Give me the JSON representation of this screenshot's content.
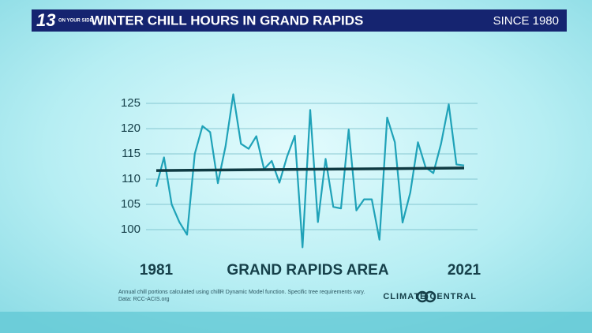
{
  "branding": {
    "logo_number": "13",
    "logo_text": "ON YOUR SIDE",
    "source_logo": "CLIMATE CENTRAL"
  },
  "header": {
    "title": "WINTER CHILL HOURS IN GRAND RAPIDS",
    "subtitle": "SINCE 1980"
  },
  "chart_data": {
    "type": "line",
    "xlabel": "GRAND RAPIDS AREA",
    "x": [
      1981,
      1982,
      1983,
      1984,
      1985,
      1986,
      1987,
      1988,
      1989,
      1990,
      1991,
      1992,
      1993,
      1994,
      1995,
      1996,
      1997,
      1998,
      1999,
      2000,
      2001,
      2002,
      2003,
      2004,
      2005,
      2006,
      2007,
      2008,
      2009,
      2010,
      2011,
      2012,
      2013,
      2014,
      2015,
      2016,
      2017,
      2018,
      2019,
      2020,
      2021
    ],
    "series": [
      {
        "color": "#1fa2b8",
        "values": [
          108.5,
          114.3,
          105,
          101.5,
          99,
          115,
          120.5,
          119.3,
          109.2,
          116.5,
          126.8,
          117,
          116,
          118.5,
          112,
          113.6,
          109.3,
          114.5,
          118.6,
          96.5,
          123.7,
          101.5,
          114,
          104.5,
          104.2,
          119.8,
          103.8,
          106,
          106,
          98,
          122.2,
          117.3,
          101.4,
          107.3,
          117.3,
          112.3,
          111.2,
          117,
          124.8,
          112.9,
          112.7
        ]
      }
    ],
    "trend": {
      "color": "#0f3a42",
      "x": [
        1981,
        2021
      ],
      "values": [
        111.7,
        112.2
      ]
    },
    "xlim": [
      1981,
      2021
    ],
    "xticks": [
      1981,
      2021
    ],
    "ylim": [
      95,
      130
    ],
    "yticks": [
      100,
      105,
      110,
      115,
      120,
      125
    ],
    "grid": true,
    "notes": [
      "Annual chill portions calculated using chillR Dynamic Model function. Specific tree requirements vary.",
      "Data: RCC-ACIS.org"
    ]
  }
}
